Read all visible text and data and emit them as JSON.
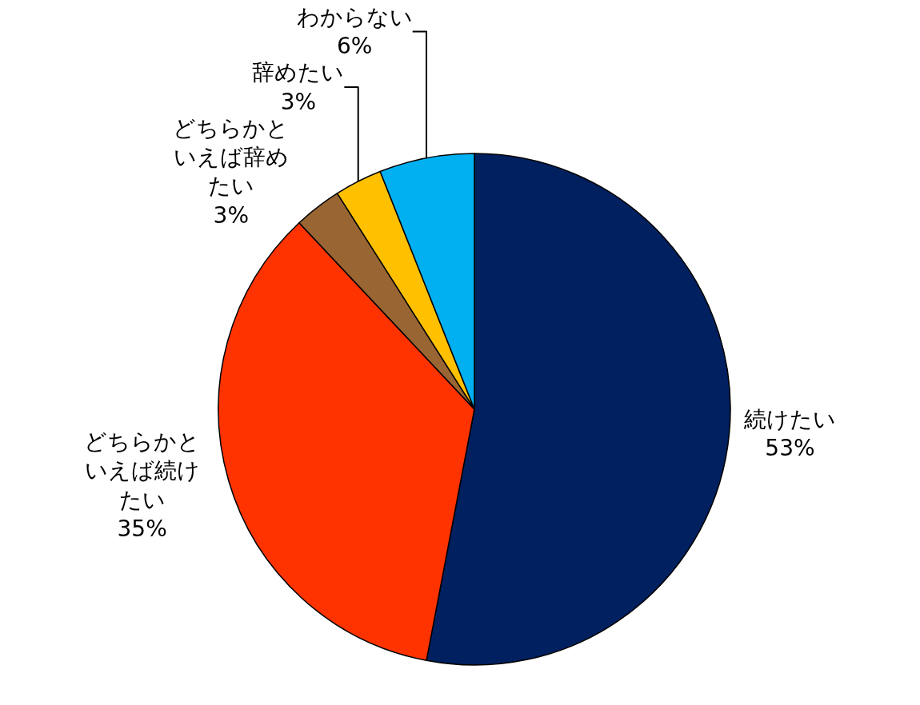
{
  "chart_data": {
    "type": "pie",
    "categories": [
      "続けたい",
      "どちらかといえば続けたい",
      "どちらかといえば辞めたい",
      "辞めたい",
      "わからない"
    ],
    "values": [
      53,
      35,
      3,
      3,
      6
    ],
    "value_labels": [
      "53%",
      "35%",
      "3%",
      "3%",
      "6%"
    ],
    "colors": [
      "#002060",
      "#ff3300",
      "#996633",
      "#ffc000",
      "#00b0f0"
    ],
    "legend": false
  }
}
